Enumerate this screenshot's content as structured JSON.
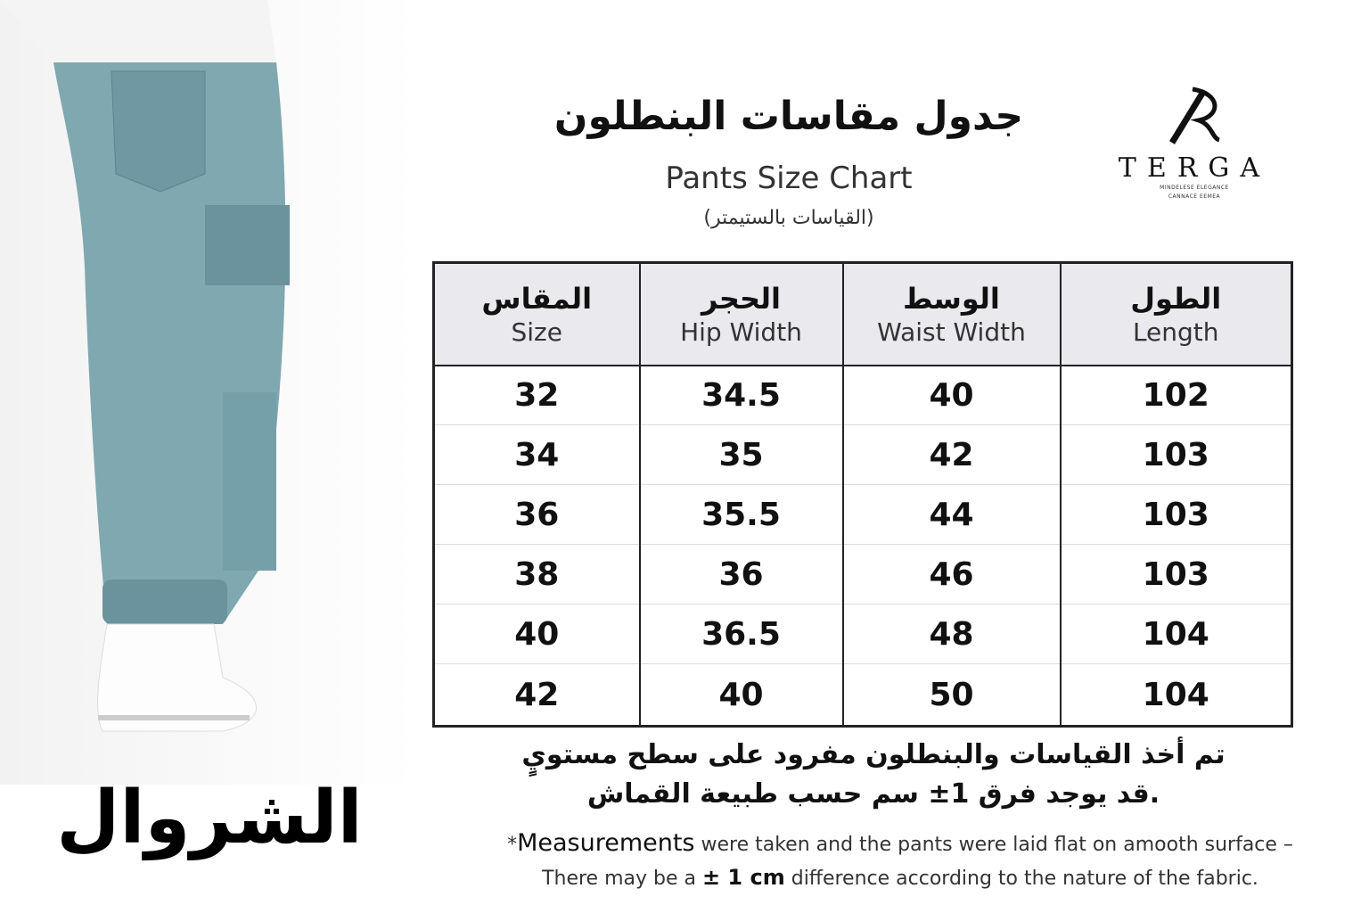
{
  "product_name_ar": "الشروال",
  "logo": {
    "word": "TERGA",
    "tagline_1": "MINDELESE ELEGANCE",
    "tagline_2": "CANNACE EEMEA"
  },
  "title_ar": "جدول مقاسات البنطلون",
  "title_en": "Pants Size Chart",
  "unit_note_ar": "(القياسات بالستيمتر)",
  "table": {
    "headers": [
      {
        "ar": "المقاس",
        "en": "Size"
      },
      {
        "ar": "الحجر",
        "en": "Hip Width"
      },
      {
        "ar": "الوسط",
        "en": "Waist Width"
      },
      {
        "ar": "الطول",
        "en": "Length"
      }
    ],
    "rows": [
      [
        "32",
        "34.5",
        "40",
        "102"
      ],
      [
        "34",
        "35",
        "42",
        "103"
      ],
      [
        "36",
        "35.5",
        "44",
        "103"
      ],
      [
        "38",
        "36",
        "46",
        "103"
      ],
      [
        "40",
        "36.5",
        "48",
        "104"
      ],
      [
        "42",
        "40",
        "50",
        "104"
      ]
    ]
  },
  "note_ar": {
    "line1": "تم أخذ القياسات والبنطلون مفرود على سطح مستويٍ",
    "line2": ".قد يوجد فرق 1± سم حسب طبيعة القماش"
  },
  "note_en": {
    "star": "*",
    "bold_word": "Measurements",
    "line1_rest": " were taken and the pants were laid flat on amooth surface –",
    "line2_a": "There may be a ",
    "line2_bold": "± 1 cm",
    "line2_b": " difference according to the nature of the fabric."
  }
}
